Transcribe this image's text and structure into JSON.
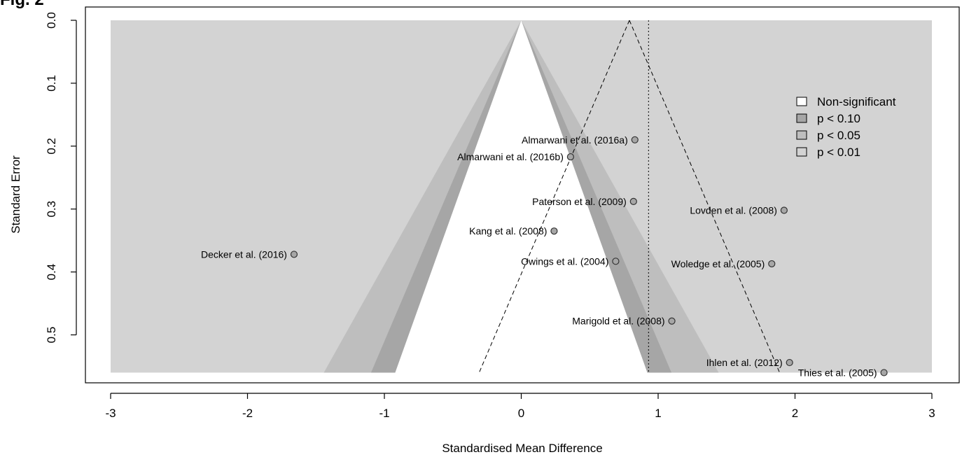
{
  "figure_label": "Fig. 2",
  "chart_data": {
    "type": "scatter",
    "subtype": "contour-enhanced funnel plot",
    "title": "",
    "xlabel": "Standardised Mean Difference",
    "ylabel": "Standard Error",
    "xlim": [
      -3,
      3
    ],
    "ylim_reversed": [
      0,
      0.56
    ],
    "x_ticks": [
      "-3",
      "-2",
      "-1",
      "0",
      "1",
      "2",
      "3"
    ],
    "y_ticks": [
      "0.0",
      "0.1",
      "0.2",
      "0.3",
      "0.4",
      "0.5"
    ],
    "summary_estimate": 0.93,
    "funnel_apex": 0.79,
    "contour_center": 0,
    "legend_position": "right",
    "legend": [
      {
        "label": "Non-significant",
        "color": "#ffffff"
      },
      {
        "label": "p < 0.10",
        "color": "#a6a6a6"
      },
      {
        "label": "p < 0.05",
        "color": "#bebebe"
      },
      {
        "label": "p < 0.01",
        "color": "#d3d3d3"
      }
    ],
    "points": [
      {
        "label": "Almarwani et al. (2016a)",
        "x": 0.83,
        "se": 0.19
      },
      {
        "label": "Almarwani et al. (2016b)",
        "x": 0.36,
        "se": 0.217
      },
      {
        "label": "Paterson et al. (2009)",
        "x": 0.82,
        "se": 0.288
      },
      {
        "label": "Lovden et al. (2008)",
        "x": 1.92,
        "se": 0.302
      },
      {
        "label": "Kang et al. (2008)",
        "x": 0.24,
        "se": 0.335
      },
      {
        "label": "Decker et al. (2016)",
        "x": -1.66,
        "se": 0.372
      },
      {
        "label": "Owings et al. (2004)",
        "x": 0.69,
        "se": 0.383
      },
      {
        "label": "Woledge et al. (2005)",
        "x": 1.83,
        "se": 0.387
      },
      {
        "label": "Marigold et al. (2008)",
        "x": 1.1,
        "se": 0.478
      },
      {
        "label": "Ihlen et al. (2012)",
        "x": 1.96,
        "se": 0.544
      },
      {
        "label": "Thies et al. (2005)",
        "x": 2.65,
        "se": 0.56
      }
    ]
  }
}
